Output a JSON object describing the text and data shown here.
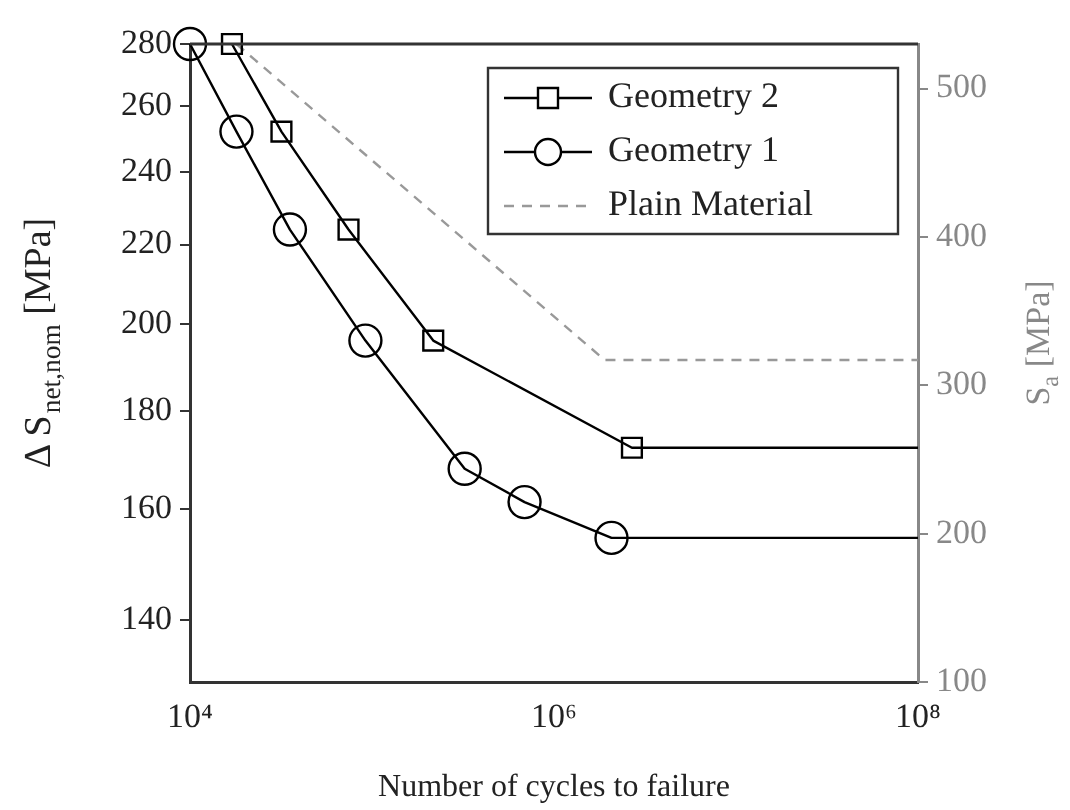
{
  "chart_data": {
    "type": "line",
    "xlabel": "Number of cycles to failure",
    "ylabel": "Δ S$_{net,nom}$ [MPa]",
    "y2label": "S$_{a}$ [MPa]",
    "log": "xy",
    "grid": false,
    "legend": "top right",
    "xlim": [
      10000,
      100000000
    ],
    "xticks": [
      {
        "value": 10000,
        "label": "10⁴"
      },
      {
        "value": 1000000,
        "label": "10⁶"
      },
      {
        "value": 100000000,
        "label": "10⁸"
      }
    ],
    "ylim": [
      130,
      280
    ],
    "yticks": [
      140,
      160,
      180,
      200,
      220,
      240,
      260,
      280
    ],
    "y2lim": [
      100,
      530
    ],
    "y2ticks": [
      100,
      200,
      300,
      400,
      500
    ],
    "series": [
      {
        "name": "Geometry 2",
        "color": "#000000",
        "marker": "square",
        "line_style": "solid",
        "x": [
          17000,
          31800,
          74300,
          217000,
          2680000,
          100000000
        ],
        "values": [
          280,
          252,
          224,
          196,
          172.3,
          172.3
        ]
      },
      {
        "name": "Geometry 1",
        "color": "#000000",
        "marker": "circle",
        "line_style": "solid",
        "x": [
          10000,
          18000,
          35400,
          92000,
          323000,
          689000,
          2070000,
          100000000
        ],
        "values": [
          280,
          252,
          224,
          196,
          168,
          161.4,
          154.6,
          154.6
        ]
      },
      {
        "name": "Plain Material",
        "color": "#999999",
        "marker": "none",
        "line_style": "dashed",
        "axis": "y2",
        "x": [
          18000,
          1900000,
          100000000
        ],
        "values": [
          530,
          317,
          317
        ]
      }
    ]
  }
}
